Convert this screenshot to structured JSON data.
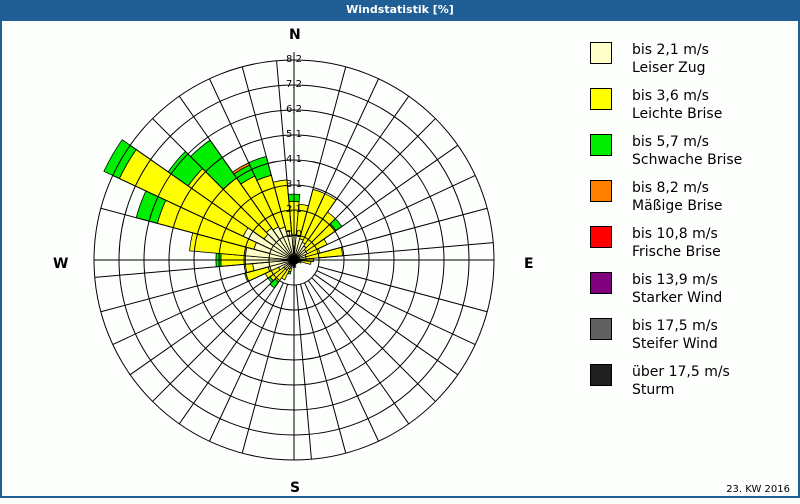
{
  "window": {
    "title": "Windstatistik [%]"
  },
  "footer": {
    "period": "23. KW 2016"
  },
  "compass": {
    "north": "N",
    "east": "E",
    "south": "S",
    "west": "W"
  },
  "legend": [
    {
      "color": "#ffffc8",
      "range": "bis 2,1 m/s",
      "name": "Leiser Zug"
    },
    {
      "color": "#ffff00",
      "range": "bis 3,6 m/s",
      "name": "Leichte Brise"
    },
    {
      "color": "#00ee00",
      "range": "bis 5,7 m/s",
      "name": "Schwache Brise"
    },
    {
      "color": "#ff8000",
      "range": "bis 8,2 m/s",
      "name": "Mäßige Brise"
    },
    {
      "color": "#ff0000",
      "range": "bis 10,8 m/s",
      "name": "Frische Brise"
    },
    {
      "color": "#800080",
      "range": "bis 13,9 m/s",
      "name": "Starker Wind"
    },
    {
      "color": "#606060",
      "range": "bis 17,5 m/s",
      "name": "Steifer Wind"
    },
    {
      "color": "#202020",
      "range": "über 17,5 m/s",
      "name": "Sturm"
    }
  ],
  "chart_data": {
    "type": "polar-stacked-bar",
    "title": "Windstatistik [%]",
    "subtitle": "23. KW 2016",
    "unit": "%",
    "radial_ticks": [
      "1,0",
      "2,1",
      "3,1",
      "4,1",
      "5,1",
      "6,2",
      "7,2",
      "8,2"
    ],
    "radial_max": 8.2,
    "sector_width_deg": 10,
    "series_names": [
      "bis 2,1 m/s",
      "bis 3,6 m/s",
      "bis 5,7 m/s",
      "bis 8,2 m/s"
    ],
    "series_colors": [
      "#ffffc8",
      "#ffff00",
      "#00ee00",
      "#ff8000"
    ],
    "sectors": [
      {
        "dir": 0,
        "values": [
          1.0,
          1.4,
          0.3,
          0
        ]
      },
      {
        "dir": 10,
        "values": [
          1.0,
          1.3,
          0,
          0
        ]
      },
      {
        "dir": 20,
        "values": [
          0.9,
          2.1,
          0,
          0
        ]
      },
      {
        "dir": 30,
        "values": [
          0.8,
          2.2,
          0,
          0
        ]
      },
      {
        "dir": 40,
        "values": [
          0.7,
          1.7,
          0,
          0
        ]
      },
      {
        "dir": 50,
        "values": [
          0.6,
          1.5,
          0.3,
          0
        ]
      },
      {
        "dir": 60,
        "values": [
          0.6,
          0.9,
          0,
          0
        ]
      },
      {
        "dir": 70,
        "values": [
          0.5,
          0.6,
          0,
          0
        ]
      },
      {
        "dir": 80,
        "values": [
          0.5,
          1.5,
          0,
          0
        ]
      },
      {
        "dir": 90,
        "values": [
          0.4,
          0.4,
          0,
          0
        ]
      },
      {
        "dir": 100,
        "values": [
          0.3,
          0.4,
          0,
          0
        ]
      },
      {
        "dir": 110,
        "values": [
          0.2,
          0.1,
          0,
          0
        ]
      },
      {
        "dir": 120,
        "values": [
          0.2,
          0,
          0,
          0
        ]
      },
      {
        "dir": 130,
        "values": [
          0.1,
          0,
          0,
          0
        ]
      },
      {
        "dir": 140,
        "values": [
          0.1,
          0,
          0,
          0
        ]
      },
      {
        "dir": 150,
        "values": [
          0.1,
          0,
          0,
          0
        ]
      },
      {
        "dir": 160,
        "values": [
          0.1,
          0,
          0,
          0
        ]
      },
      {
        "dir": 170,
        "values": [
          0.3,
          0,
          0,
          0
        ]
      },
      {
        "dir": 180,
        "values": [
          0.3,
          0,
          0,
          0
        ]
      },
      {
        "dir": 190,
        "values": [
          0.2,
          0,
          0,
          0
        ]
      },
      {
        "dir": 200,
        "values": [
          0.3,
          0.2,
          0.1,
          0
        ]
      },
      {
        "dir": 210,
        "values": [
          0.4,
          0.5,
          0,
          0
        ]
      },
      {
        "dir": 220,
        "values": [
          0.5,
          0.6,
          0.3,
          0
        ]
      },
      {
        "dir": 230,
        "values": [
          0.5,
          0.7,
          0.1,
          0
        ]
      },
      {
        "dir": 240,
        "values": [
          0.7,
          0.6,
          0,
          0
        ]
      },
      {
        "dir": 250,
        "values": [
          1.1,
          1.0,
          0,
          0
        ]
      },
      {
        "dir": 260,
        "values": [
          1.7,
          0.3,
          0,
          0
        ]
      },
      {
        "dir": 270,
        "values": [
          2.0,
          1.0,
          0.2,
          0
        ]
      },
      {
        "dir": 280,
        "values": [
          2.0,
          2.3,
          0,
          0
        ]
      },
      {
        "dir": 290,
        "values": [
          1.7,
          4.1,
          0.9,
          0
        ]
      },
      {
        "dir": 300,
        "values": [
          2.3,
          5.6,
          0.7,
          0
        ]
      },
      {
        "dir": 310,
        "values": [
          1.5,
          3.8,
          1.0,
          0
        ]
      },
      {
        "dir": 320,
        "values": [
          1.6,
          2.5,
          1.9,
          0
        ]
      },
      {
        "dir": 330,
        "values": [
          1.5,
          2.3,
          0.5,
          0.1
        ]
      },
      {
        "dir": 340,
        "values": [
          1.4,
          2.2,
          0.8,
          0
        ]
      },
      {
        "dir": 350,
        "values": [
          1.2,
          2.1,
          0,
          0
        ]
      }
    ],
    "legend_position": "right",
    "grid": true
  }
}
